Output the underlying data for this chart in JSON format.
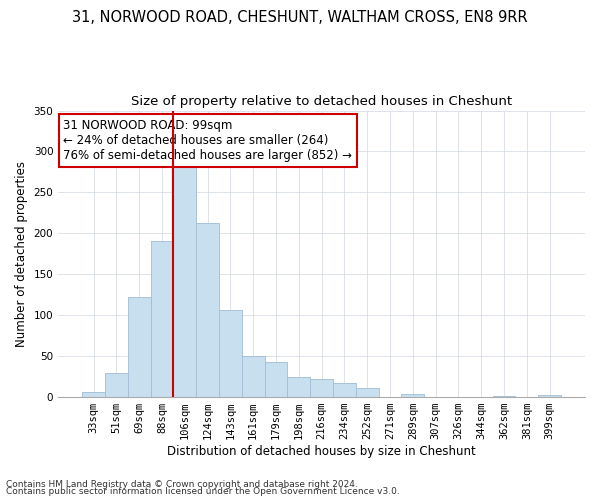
{
  "title": "31, NORWOOD ROAD, CHESHUNT, WALTHAM CROSS, EN8 9RR",
  "subtitle": "Size of property relative to detached houses in Cheshunt",
  "xlabel": "Distribution of detached houses by size in Cheshunt",
  "ylabel": "Number of detached properties",
  "bar_labels": [
    "33sqm",
    "51sqm",
    "69sqm",
    "88sqm",
    "106sqm",
    "124sqm",
    "143sqm",
    "161sqm",
    "179sqm",
    "198sqm",
    "216sqm",
    "234sqm",
    "252sqm",
    "271sqm",
    "289sqm",
    "307sqm",
    "326sqm",
    "344sqm",
    "362sqm",
    "381sqm",
    "399sqm"
  ],
  "bar_values": [
    5,
    29,
    122,
    190,
    293,
    213,
    106,
    50,
    42,
    24,
    22,
    17,
    11,
    0,
    3,
    0,
    0,
    0,
    1,
    0,
    2
  ],
  "bar_color": "#c8dff0",
  "bar_edge_color": "#a0bcd4",
  "vline_x_index": 4,
  "vline_color": "#cc0000",
  "annotation_title": "31 NORWOOD ROAD: 99sqm",
  "annotation_line1": "← 24% of detached houses are smaller (264)",
  "annotation_line2": "76% of semi-detached houses are larger (852) →",
  "annotation_box_color": "#ffffff",
  "annotation_box_edge": "#cc0000",
  "ylim": [
    0,
    350
  ],
  "yticks": [
    0,
    50,
    100,
    150,
    200,
    250,
    300,
    350
  ],
  "footnote1": "Contains HM Land Registry data © Crown copyright and database right 2024.",
  "footnote2": "Contains public sector information licensed under the Open Government Licence v3.0.",
  "title_fontsize": 10.5,
  "subtitle_fontsize": 9.5,
  "axis_label_fontsize": 8.5,
  "tick_fontsize": 7.5,
  "annotation_fontsize": 8.5,
  "footnote_fontsize": 6.5
}
